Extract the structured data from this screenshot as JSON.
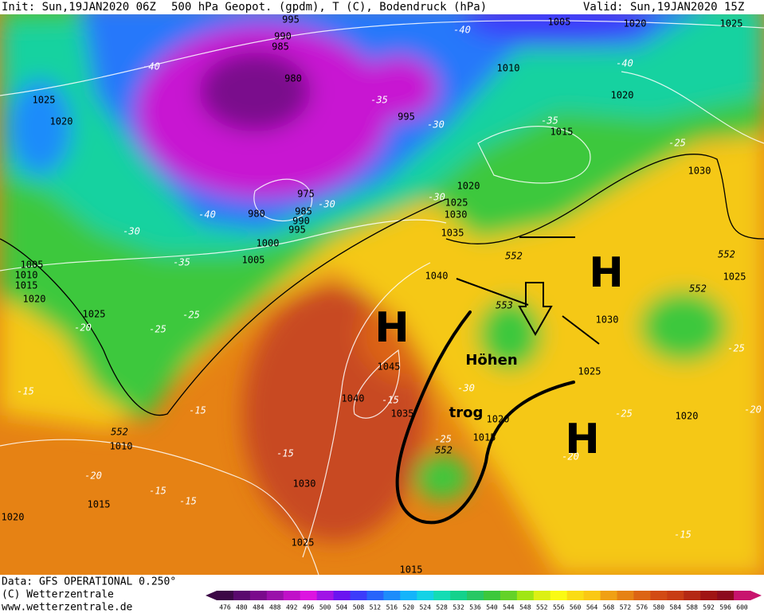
{
  "header": {
    "init": "Init: Sun,19JAN2020 06Z",
    "title": "500 hPa Geopot. (gpdm), T (C), Bodendruck (hPa)",
    "valid": "Valid: Sun,19JAN2020 15Z"
  },
  "footer": {
    "data": "Data: GFS OPERATIONAL 0.250°",
    "copyright": "(C) Wetterzentrale",
    "url": "www.wetterzentrale.de"
  },
  "colorbar": {
    "values": [
      476,
      480,
      484,
      488,
      492,
      496,
      500,
      504,
      508,
      512,
      516,
      520,
      524,
      528,
      532,
      536,
      540,
      544,
      548,
      552,
      556,
      560,
      564,
      568,
      572,
      576,
      580,
      584,
      588,
      592,
      596,
      600
    ],
    "colors": [
      "#3c0846",
      "#5a0a6e",
      "#7a0a8c",
      "#9a10aa",
      "#c010c8",
      "#dc14e0",
      "#a014e6",
      "#6a14f0",
      "#3c3cfa",
      "#2864fa",
      "#1e8cfa",
      "#14b4fa",
      "#14d2e6",
      "#14dcb4",
      "#14d28c",
      "#28c864",
      "#3cc83c",
      "#64d228",
      "#a0e614",
      "#dcf014",
      "#fafa14",
      "#fadc14",
      "#fac814",
      "#f0a014",
      "#e68214",
      "#dc6414",
      "#d24a14",
      "#c83c14",
      "#b42814",
      "#a01414",
      "#8c0a1e",
      "#c8146e"
    ]
  },
  "map": {
    "pressure_labels": [
      995,
      990,
      985,
      980,
      1005,
      1020,
      1025,
      1010,
      1020,
      1015,
      995,
      1025,
      1020,
      975,
      980,
      985,
      990,
      995,
      1000,
      1005,
      1020,
      1025,
      1030,
      1035,
      1040,
      1030,
      1025,
      1030,
      1045,
      1040,
      1035,
      1025,
      1020,
      1015,
      1020,
      1010,
      1015,
      1020,
      1030,
      1025,
      1015,
      1005,
      1010,
      1015,
      1020,
      1025
    ],
    "temperature_labels": [
      -40,
      -40,
      -40,
      -35,
      -35,
      -30,
      -25,
      -30,
      -30,
      -40,
      -30,
      -35,
      -25,
      -25,
      -20,
      -15,
      -15,
      -15,
      -30,
      -25,
      -25,
      -20,
      -25,
      -20,
      -15,
      -15,
      -15,
      -20,
      -15
    ],
    "geopotential_labels": [
      552,
      552,
      552,
      553,
      552,
      552
    ],
    "annotations": [
      "H",
      "H",
      "H",
      "Höhen",
      "trog"
    ]
  }
}
